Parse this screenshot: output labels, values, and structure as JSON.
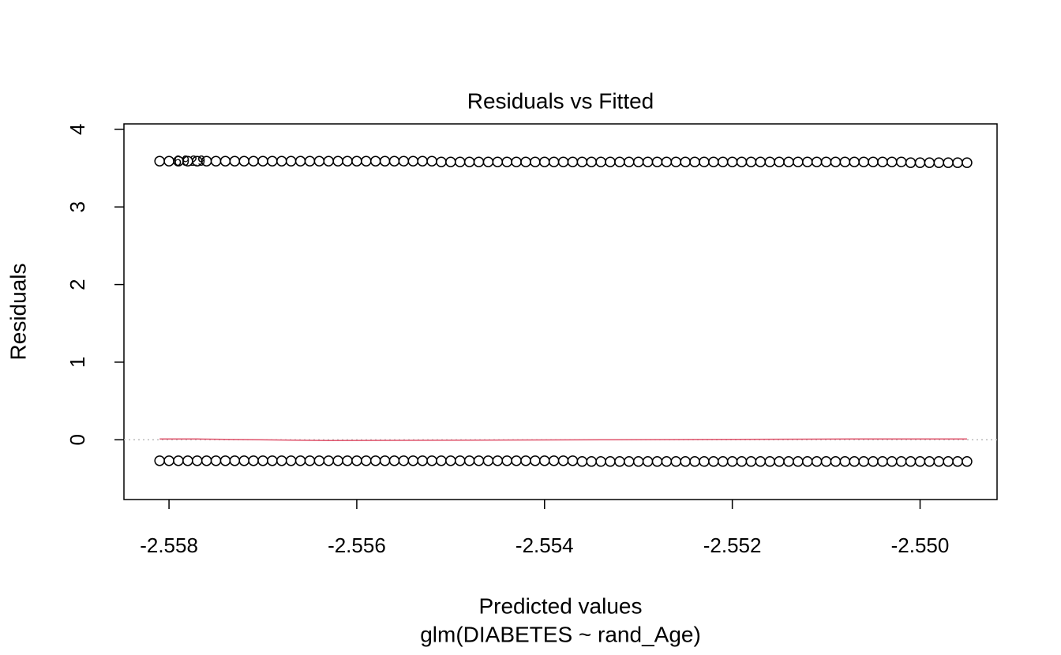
{
  "chart_data": {
    "type": "scatter",
    "title": "Residuals vs Fitted",
    "x_label": "Predicted values",
    "subtitle": "glm(DIABETES ~ rand_Age)",
    "y_label": "Residuals",
    "xlim": [
      -2.55848,
      -2.54918
    ],
    "ylim": [
      -0.77,
      4.07
    ],
    "xticks": [
      -2.558,
      -2.556,
      -2.554,
      -2.552,
      {
        "value": -2.55,
        "label": "-2.550"
      }
    ],
    "yticks": [
      0,
      1,
      2,
      3,
      4
    ],
    "reference_line": 0,
    "x": [
      -2.5581,
      -2.558,
      -2.5579,
      -2.5578,
      -2.5577,
      -2.5576,
      -2.5575,
      -2.5574,
      -2.5573,
      -2.5572,
      -2.5571,
      -2.557,
      -2.5569,
      -2.5568,
      -2.5567,
      -2.5566,
      -2.5565,
      -2.5564,
      -2.5563,
      -2.5562,
      -2.5561,
      -2.556,
      -2.5559,
      -2.5558,
      -2.5557,
      -2.5556,
      -2.5555,
      -2.5554,
      -2.5553,
      -2.5552,
      -2.5551,
      -2.555,
      -2.5549,
      -2.5548,
      -2.5547,
      -2.5546,
      -2.5545,
      -2.5544,
      -2.5543,
      -2.5542,
      -2.5541,
      -2.554,
      -2.5539,
      -2.5538,
      -2.5537,
      -2.5536,
      -2.5535,
      -2.5534,
      -2.5533,
      -2.5532,
      -2.5531,
      -2.553,
      -2.5529,
      -2.5528,
      -2.5527,
      -2.5526,
      -2.5525,
      -2.5524,
      -2.5523,
      -2.5522,
      -2.5521,
      -2.552,
      -2.5519,
      -2.5518,
      -2.5517,
      -2.5516,
      -2.5515,
      -2.5514,
      -2.5513,
      -2.5512,
      -2.5511,
      -2.551,
      -2.5509,
      -2.5508,
      -2.5507,
      -2.5506,
      -2.5505,
      -2.5504,
      -2.5503,
      -2.5502,
      -2.5501,
      -2.55,
      -2.5499,
      -2.5498,
      -2.5497,
      -2.5496,
      -2.5495
    ],
    "series": [
      {
        "color": "#000000",
        "values": [
          3.59,
          3.59,
          3.59,
          3.59,
          3.59,
          3.59,
          3.59,
          3.59,
          3.59,
          3.59,
          3.59,
          3.59,
          3.59,
          3.59,
          3.59,
          3.59,
          3.59,
          3.59,
          3.59,
          3.59,
          3.59,
          3.59,
          3.59,
          3.59,
          3.59,
          3.59,
          3.59,
          3.59,
          3.59,
          3.59,
          3.58,
          3.58,
          3.58,
          3.58,
          3.58,
          3.58,
          3.58,
          3.58,
          3.58,
          3.58,
          3.58,
          3.58,
          3.58,
          3.58,
          3.58,
          3.58,
          3.58,
          3.58,
          3.58,
          3.58,
          3.58,
          3.58,
          3.58,
          3.58,
          3.58,
          3.58,
          3.58,
          3.58,
          3.58,
          3.58,
          3.58,
          3.58,
          3.58,
          3.58,
          3.58,
          3.58,
          3.58,
          3.58,
          3.58,
          3.58,
          3.58,
          3.58,
          3.58,
          3.58,
          3.58,
          3.58,
          3.58,
          3.58,
          3.58,
          3.58,
          3.57,
          3.57,
          3.57,
          3.57,
          3.57,
          3.57,
          3.57
        ]
      },
      {
        "color": "#000000",
        "values": [
          -0.27,
          -0.27,
          -0.27,
          -0.27,
          -0.27,
          -0.27,
          -0.27,
          -0.27,
          -0.27,
          -0.27,
          -0.27,
          -0.27,
          -0.27,
          -0.27,
          -0.27,
          -0.27,
          -0.27,
          -0.27,
          -0.27,
          -0.27,
          -0.27,
          -0.27,
          -0.27,
          -0.27,
          -0.27,
          -0.27,
          -0.27,
          -0.27,
          -0.27,
          -0.27,
          -0.27,
          -0.27,
          -0.27,
          -0.27,
          -0.27,
          -0.27,
          -0.27,
          -0.27,
          -0.27,
          -0.27,
          -0.27,
          -0.27,
          -0.27,
          -0.27,
          -0.27,
          -0.28,
          -0.28,
          -0.28,
          -0.28,
          -0.28,
          -0.28,
          -0.28,
          -0.28,
          -0.28,
          -0.28,
          -0.28,
          -0.28,
          -0.28,
          -0.28,
          -0.28,
          -0.28,
          -0.28,
          -0.28,
          -0.28,
          -0.28,
          -0.28,
          -0.28,
          -0.28,
          -0.28,
          -0.28,
          -0.28,
          -0.28,
          -0.28,
          -0.28,
          -0.28,
          -0.28,
          -0.28,
          -0.28,
          -0.28,
          -0.28,
          -0.28,
          -0.28,
          -0.28,
          -0.28,
          -0.28,
          -0.28,
          -0.28
        ]
      }
    ],
    "smooth": {
      "color": "#DF536B",
      "x": [
        -2.5581,
        -2.5577,
        -2.5563,
        -2.5533,
        -2.5507,
        -2.5495
      ],
      "y": [
        0.01,
        0.01,
        -0.01,
        0.0,
        0.01,
        0.01
      ]
    },
    "point_labels": [
      {
        "x": -2.558,
        "y": 3.59,
        "text": "6929"
      }
    ]
  }
}
